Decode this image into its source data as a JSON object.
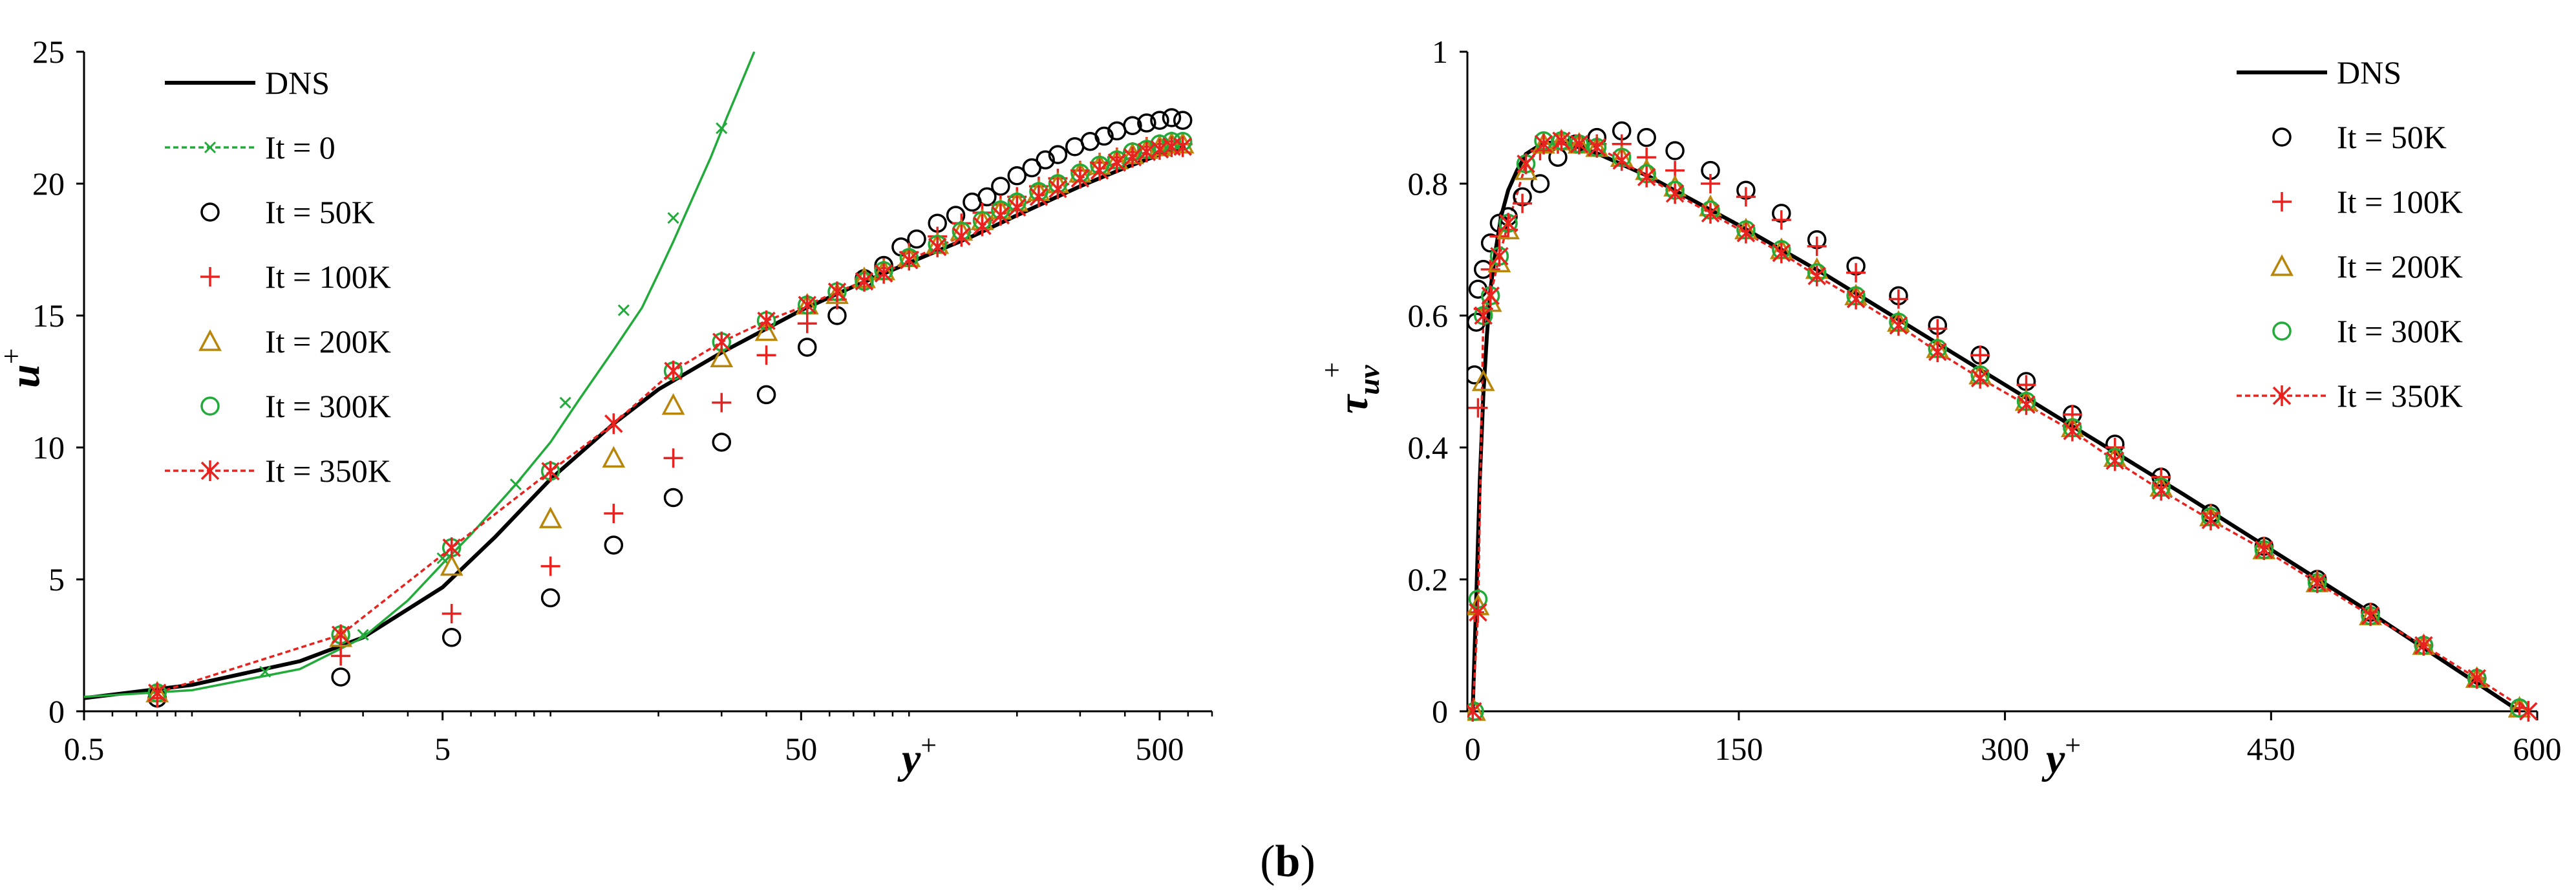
{
  "caption": {
    "open": "(",
    "letter": "b",
    "close": ")"
  },
  "colors": {
    "dns": "#000000",
    "it0": "#22aa3a",
    "it50": "#000000",
    "it100": "#e8231f",
    "it200": "#b8860b",
    "it300": "#22aa3a",
    "it350": "#e8231f"
  },
  "chart_data": [
    {
      "type": "line",
      "xscale": "log",
      "xlim": [
        0.5,
        700
      ],
      "ylim": [
        0,
        25
      ],
      "xticks": [
        0.5,
        5,
        50,
        500
      ],
      "xtick_labels": [
        "0.5",
        "5",
        "50",
        "500"
      ],
      "yticks": [
        0,
        5,
        10,
        15,
        20,
        25
      ],
      "ytick_labels": [
        "0",
        "5",
        "10",
        "15",
        "20",
        "25"
      ],
      "xlabel": {
        "base": "y",
        "sup": "+"
      },
      "ylabel": {
        "base": "u",
        "sup": "+"
      },
      "legend_position": "top-left",
      "series": [
        {
          "name": "DNS",
          "style": "line-solid",
          "color_key": "dns",
          "x": [
            0.5,
            1,
            2,
            3,
            5,
            7,
            10,
            15,
            20,
            30,
            40,
            50,
            70,
            100,
            150,
            200,
            300,
            400,
            500,
            590
          ],
          "y": [
            0.5,
            1.0,
            1.9,
            2.8,
            4.7,
            6.6,
            8.8,
            10.9,
            12.2,
            13.6,
            14.5,
            15.2,
            16.1,
            17.0,
            18.0,
            18.8,
            19.9,
            20.6,
            21.1,
            21.4
          ]
        },
        {
          "name": "It = 0",
          "style": "line-dotted-x",
          "color_key": "it0",
          "x": [
            0.5,
            1,
            2,
            3,
            4,
            5,
            6,
            8,
            10,
            12,
            15,
            18,
            20,
            22,
            25,
            28,
            31,
            34,
            37
          ],
          "y": [
            0.55,
            0.8,
            1.6,
            2.8,
            4.2,
            5.6,
            6.7,
            8.6,
            10.2,
            11.8,
            13.7,
            15.3,
            16.6,
            17.8,
            19.5,
            21.0,
            22.5,
            23.8,
            25.0
          ],
          "markers_x": [
            0.8,
            1.6,
            3,
            5,
            8,
            11,
            16,
            22,
            30
          ],
          "markers_y": [
            0.7,
            1.5,
            2.9,
            5.8,
            8.6,
            11.7,
            15.2,
            18.7,
            22.1
          ]
        },
        {
          "name": "It = 50K",
          "style": "marker-circle",
          "color_key": "it50",
          "x": [
            0.8,
            2.6,
            5.3,
            10,
            15,
            22,
            30,
            40,
            52,
            63,
            75,
            85,
            95,
            105,
            120,
            135,
            150,
            165,
            180,
            200,
            220,
            240,
            260,
            290,
            320,
            350,
            380,
            420,
            460,
            500,
            540,
            580
          ],
          "y": [
            0.5,
            1.3,
            2.8,
            4.3,
            6.3,
            8.1,
            10.2,
            12.0,
            13.8,
            15.0,
            16.4,
            16.9,
            17.6,
            17.9,
            18.5,
            18.8,
            19.3,
            19.5,
            19.9,
            20.3,
            20.6,
            20.9,
            21.1,
            21.4,
            21.6,
            21.8,
            22.0,
            22.2,
            22.3,
            22.4,
            22.5,
            22.4
          ]
        },
        {
          "name": "It = 100K",
          "style": "marker-plus",
          "color_key": "it100",
          "x": [
            0.8,
            2.6,
            5.3,
            10,
            15,
            22,
            30,
            40,
            52,
            63,
            75,
            85,
            100,
            120,
            140,
            160,
            180,
            200,
            230,
            260,
            300,
            340,
            380,
            420,
            460,
            500,
            540,
            580
          ],
          "y": [
            0.5,
            2.1,
            3.7,
            5.5,
            7.5,
            9.6,
            11.7,
            13.5,
            14.7,
            15.6,
            16.4,
            16.8,
            17.4,
            18.0,
            18.5,
            18.9,
            19.2,
            19.5,
            19.9,
            20.2,
            20.5,
            20.8,
            21.0,
            21.2,
            21.4,
            21.5,
            21.6,
            21.5
          ]
        },
        {
          "name": "It = 200K",
          "style": "marker-triangle",
          "color_key": "it200",
          "x": [
            0.8,
            2.6,
            5.3,
            10,
            15,
            22,
            30,
            40,
            52,
            63,
            75,
            85,
            100,
            120,
            140,
            160,
            180,
            200,
            230,
            260,
            300,
            340,
            380,
            420,
            460,
            500,
            540,
            580
          ],
          "y": [
            0.7,
            2.8,
            5.5,
            7.3,
            9.6,
            11.6,
            13.4,
            14.4,
            15.4,
            15.8,
            16.4,
            16.7,
            17.2,
            17.7,
            18.2,
            18.6,
            19.0,
            19.3,
            19.7,
            20.0,
            20.4,
            20.7,
            20.9,
            21.1,
            21.3,
            21.4,
            21.5,
            21.5
          ]
        },
        {
          "name": "It = 300K",
          "style": "marker-circle",
          "color_key": "it300",
          "x": [
            0.8,
            2.6,
            5.3,
            10,
            22,
            30,
            40,
            52,
            63,
            75,
            85,
            100,
            120,
            140,
            160,
            180,
            200,
            230,
            260,
            300,
            340,
            380,
            420,
            460,
            500,
            540,
            580
          ],
          "y": [
            0.7,
            2.9,
            6.2,
            9.1,
            12.9,
            14.0,
            14.8,
            15.4,
            15.9,
            16.3,
            16.7,
            17.2,
            17.7,
            18.2,
            18.6,
            19.0,
            19.3,
            19.7,
            20.0,
            20.4,
            20.7,
            20.9,
            21.2,
            21.3,
            21.5,
            21.6,
            21.6
          ]
        },
        {
          "name": "It = 350K",
          "style": "line-dotted-star",
          "color_key": "it350",
          "x": [
            0.8,
            2.6,
            5.3,
            10,
            15,
            22,
            30,
            40,
            52,
            63,
            75,
            85,
            100,
            120,
            140,
            160,
            180,
            200,
            230,
            260,
            300,
            340,
            380,
            420,
            460,
            500,
            540,
            580
          ],
          "y": [
            0.7,
            2.9,
            6.2,
            9.1,
            10.9,
            12.9,
            14.0,
            14.8,
            15.4,
            15.9,
            16.3,
            16.6,
            17.1,
            17.6,
            18.0,
            18.4,
            18.8,
            19.1,
            19.5,
            19.8,
            20.2,
            20.5,
            20.8,
            21.0,
            21.2,
            21.3,
            21.4,
            21.4
          ]
        }
      ]
    },
    {
      "type": "line",
      "xscale": "linear",
      "xlim": [
        -3,
        600
      ],
      "ylim": [
        0,
        1
      ],
      "xticks": [
        0,
        150,
        300,
        450,
        600
      ],
      "xtick_labels": [
        "0",
        "150",
        "300",
        "450",
        "600"
      ],
      "yticks": [
        0,
        0.2,
        0.4,
        0.6,
        0.8,
        1
      ],
      "ytick_labels": [
        "0",
        "0.2",
        "0.4",
        "0.6",
        "0.8",
        "1"
      ],
      "xlabel": {
        "base": "y",
        "sup": "+"
      },
      "ylabel": {
        "base": "τ",
        "sub": "uv",
        "sup": "+"
      },
      "legend_position": "top-right",
      "series": [
        {
          "name": "DNS",
          "style": "line-solid",
          "color_key": "dns",
          "x": [
            0,
            2,
            4,
            6,
            8,
            10,
            13,
            16,
            20,
            25,
            30,
            40,
            50,
            60,
            70,
            100,
            150,
            200,
            300,
            400,
            500,
            590
          ],
          "y": [
            0,
            0.17,
            0.35,
            0.48,
            0.57,
            0.64,
            0.7,
            0.75,
            0.79,
            0.82,
            0.845,
            0.862,
            0.862,
            0.855,
            0.846,
            0.81,
            0.737,
            0.66,
            0.495,
            0.33,
            0.16,
            0.0
          ]
        },
        {
          "name": "It = 50K",
          "style": "marker-circle",
          "color_key": "it50",
          "x": [
            1,
            2,
            3,
            6,
            10,
            15,
            20,
            28,
            38,
            48,
            58,
            70,
            84,
            98,
            114,
            134,
            154,
            174,
            194,
            216,
            240,
            262,
            286,
            312,
            338,
            362,
            388,
            416,
            446,
            476,
            506,
            536,
            566,
            590
          ],
          "y": [
            0.51,
            0.59,
            0.64,
            0.67,
            0.71,
            0.74,
            0.75,
            0.78,
            0.8,
            0.84,
            0.86,
            0.87,
            0.88,
            0.87,
            0.85,
            0.82,
            0.79,
            0.755,
            0.715,
            0.675,
            0.63,
            0.585,
            0.54,
            0.5,
            0.45,
            0.405,
            0.355,
            0.3,
            0.25,
            0.2,
            0.15,
            0.1,
            0.05,
            0.005
          ]
        },
        {
          "name": "It = 100K",
          "style": "marker-plus",
          "color_key": "it100",
          "x": [
            1,
            3,
            6,
            10,
            15,
            20,
            28,
            38,
            48,
            58,
            70,
            84,
            98,
            114,
            134,
            154,
            174,
            194,
            216,
            240,
            262,
            286,
            312,
            338,
            362,
            388,
            416,
            446,
            476,
            506,
            536,
            566,
            590
          ],
          "y": [
            0.15,
            0.46,
            0.61,
            0.67,
            0.72,
            0.73,
            0.77,
            0.85,
            0.86,
            0.86,
            0.86,
            0.86,
            0.84,
            0.82,
            0.8,
            0.78,
            0.745,
            0.705,
            0.665,
            0.625,
            0.58,
            0.54,
            0.495,
            0.45,
            0.4,
            0.355,
            0.3,
            0.25,
            0.2,
            0.15,
            0.1,
            0.05,
            0.005
          ]
        },
        {
          "name": "It = 200K",
          "style": "marker-triangle",
          "color_key": "it200",
          "x": [
            1,
            3,
            6,
            10,
            15,
            20,
            30,
            40,
            50,
            60,
            70,
            84,
            98,
            114,
            134,
            154,
            174,
            194,
            216,
            240,
            262,
            286,
            312,
            338,
            362,
            388,
            416,
            446,
            476,
            506,
            536,
            566,
            590
          ],
          "y": [
            0.0,
            0.16,
            0.5,
            0.62,
            0.68,
            0.73,
            0.82,
            0.86,
            0.865,
            0.86,
            0.855,
            0.84,
            0.82,
            0.795,
            0.765,
            0.73,
            0.7,
            0.67,
            0.63,
            0.59,
            0.55,
            0.51,
            0.47,
            0.43,
            0.385,
            0.34,
            0.295,
            0.245,
            0.195,
            0.145,
            0.1,
            0.05,
            0.005
          ]
        },
        {
          "name": "It = 300K",
          "style": "marker-circle",
          "color_key": "it300",
          "x": [
            1,
            3,
            6,
            10,
            15,
            20,
            30,
            40,
            50,
            60,
            70,
            84,
            98,
            114,
            134,
            154,
            174,
            194,
            216,
            240,
            262,
            286,
            312,
            338,
            362,
            388,
            416,
            446,
            476,
            506,
            536,
            566,
            590
          ],
          "y": [
            0.0,
            0.17,
            0.6,
            0.63,
            0.69,
            0.74,
            0.83,
            0.865,
            0.865,
            0.86,
            0.855,
            0.84,
            0.815,
            0.79,
            0.76,
            0.73,
            0.7,
            0.665,
            0.63,
            0.59,
            0.55,
            0.51,
            0.47,
            0.43,
            0.385,
            0.34,
            0.295,
            0.245,
            0.195,
            0.145,
            0.1,
            0.05,
            0.005
          ]
        },
        {
          "name": "It = 350K",
          "style": "line-dotted-star",
          "color_key": "it350",
          "x": [
            0,
            3,
            6,
            10,
            15,
            20,
            30,
            40,
            50,
            60,
            70,
            84,
            98,
            114,
            134,
            154,
            174,
            194,
            216,
            240,
            262,
            286,
            312,
            338,
            362,
            388,
            416,
            446,
            476,
            506,
            536,
            566,
            595
          ],
          "y": [
            0.0,
            0.15,
            0.6,
            0.63,
            0.69,
            0.74,
            0.83,
            0.86,
            0.865,
            0.86,
            0.855,
            0.835,
            0.81,
            0.785,
            0.755,
            0.725,
            0.695,
            0.66,
            0.625,
            0.585,
            0.545,
            0.505,
            0.465,
            0.425,
            0.38,
            0.335,
            0.29,
            0.245,
            0.195,
            0.145,
            0.1,
            0.05,
            0.0
          ]
        }
      ]
    }
  ]
}
